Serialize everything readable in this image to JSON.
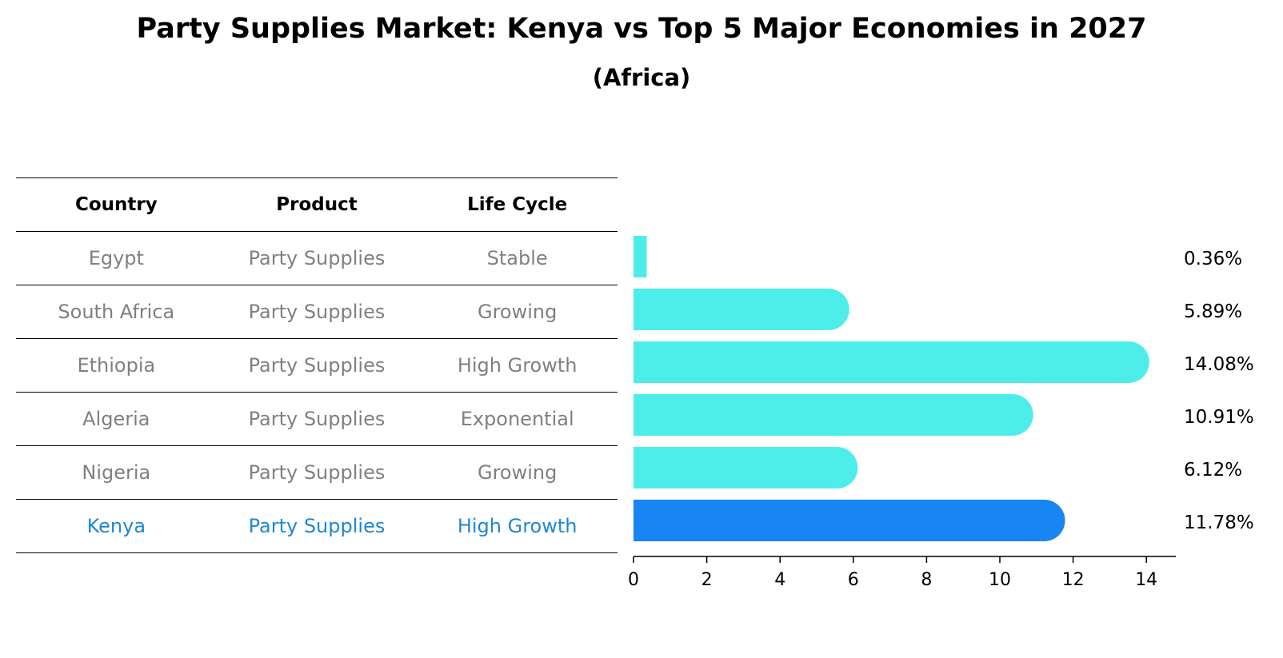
{
  "title": "Party Supplies Market: Kenya vs Top 5 Major Economies in 2027",
  "subtitle": "(Africa)",
  "table": {
    "headers": [
      "Country",
      "Product",
      "Life Cycle"
    ],
    "rows": [
      {
        "country": "Egypt",
        "product": "Party Supplies",
        "life_cycle": "Stable"
      },
      {
        "country": "South Africa",
        "product": "Party Supplies",
        "life_cycle": "Growing"
      },
      {
        "country": "Ethiopia",
        "product": "Party Supplies",
        "life_cycle": "High Growth"
      },
      {
        "country": "Algeria",
        "product": "Party Supplies",
        "life_cycle": "Exponential"
      },
      {
        "country": "Nigeria",
        "product": "Party Supplies",
        "life_cycle": "Growing"
      },
      {
        "country": "Kenya",
        "product": "Party Supplies",
        "life_cycle": "High Growth"
      }
    ]
  },
  "chart_data": {
    "type": "bar",
    "orientation": "horizontal",
    "categories": [
      "Egypt",
      "South Africa",
      "Ethiopia",
      "Algeria",
      "Nigeria",
      "Kenya"
    ],
    "values": [
      0.36,
      5.89,
      14.08,
      10.91,
      6.12,
      11.78
    ],
    "value_labels": [
      "0.36%",
      "5.89%",
      "14.08%",
      "10.91%",
      "6.12%",
      "11.78%"
    ],
    "highlight": "Kenya",
    "xlim": [
      0,
      14.8
    ],
    "xticks": [
      0,
      2,
      4,
      6,
      8,
      10,
      12,
      14
    ],
    "grid": false,
    "colors": {
      "default": "#4deeea",
      "highlight": "#1885f2"
    }
  }
}
